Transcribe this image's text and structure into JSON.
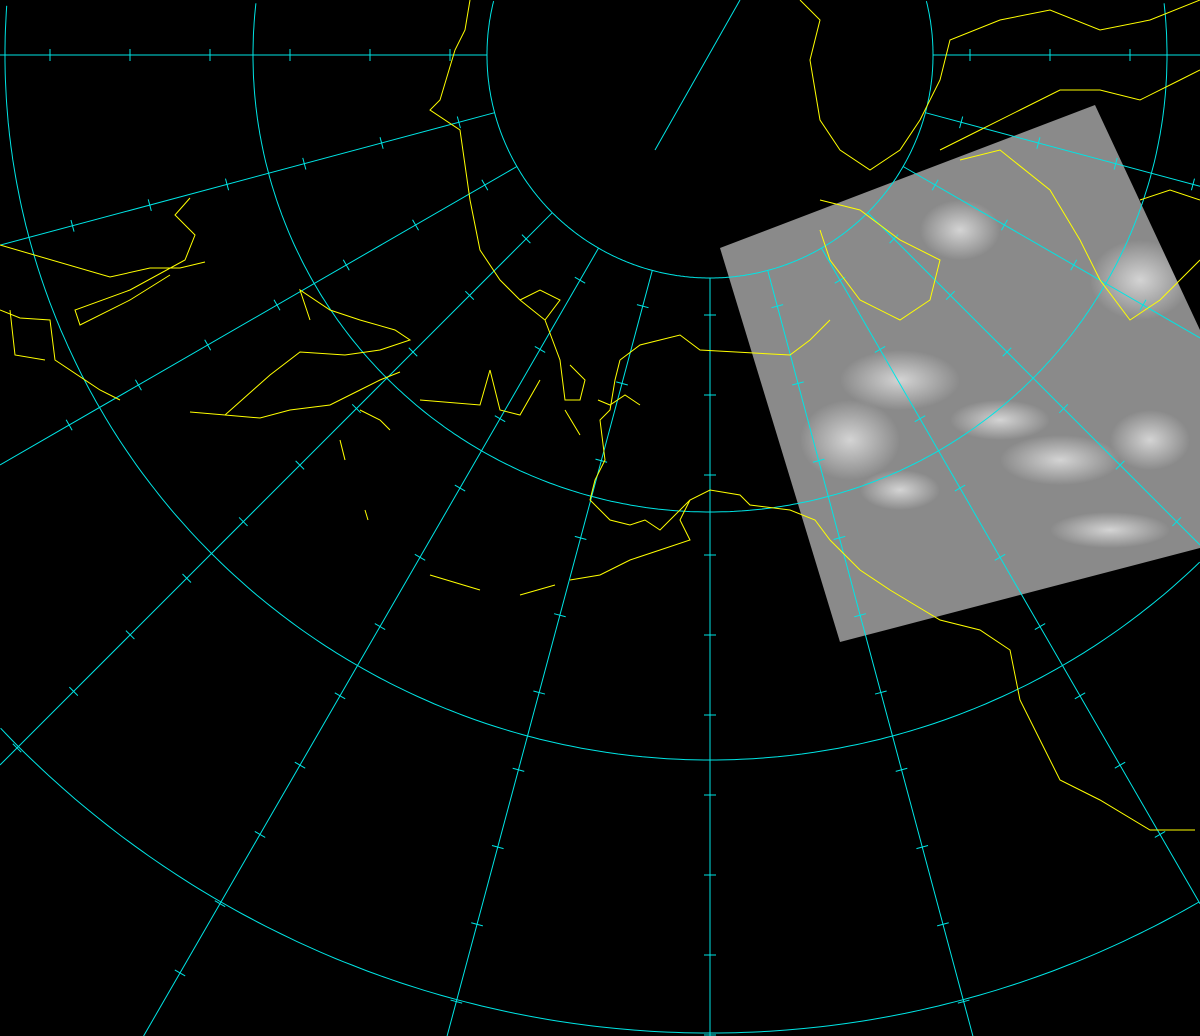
{
  "map": {
    "projection": "polar-stereographic",
    "meridian_spacing_deg": 15,
    "graticule_color": "#00e5e5",
    "coastline_color": "#ffff00",
    "background_color": "#000000",
    "imagery": "satellite-infrared-swath",
    "imagery_tone": "#8a8a8a"
  }
}
